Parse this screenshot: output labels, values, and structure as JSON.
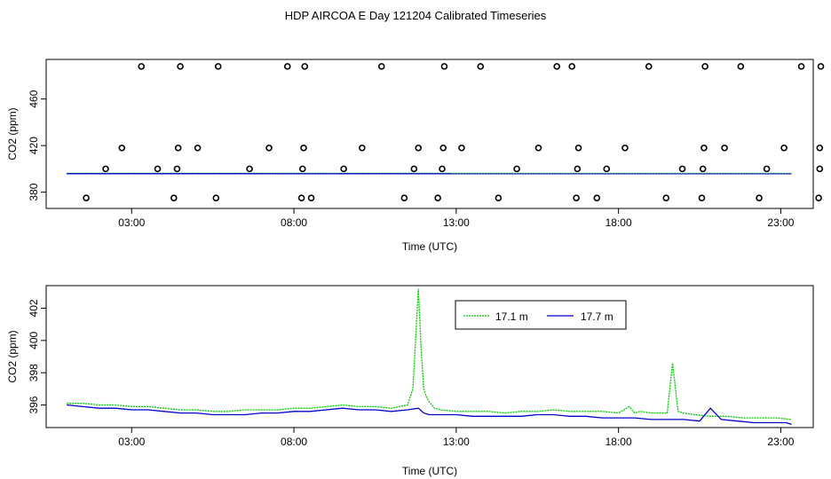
{
  "title": "HDP AIRCOA E  Day 121204  Calibrated Timeseries",
  "colors": {
    "series1": "#00cc00",
    "series2": "#0000cc",
    "markers": "#000000"
  },
  "chart_data": [
    {
      "type": "scatter",
      "xlabel": "Time (UTC)",
      "ylabel": "CO2 (ppm)",
      "xlim": [
        22,
        1440
      ],
      "ylim": [
        366,
        494
      ],
      "x_ticks": [
        180,
        480,
        780,
        1080,
        1380
      ],
      "x_tick_labels": [
        "03:00",
        "08:00",
        "13:00",
        "18:00",
        "23:00"
      ],
      "y_ticks": [
        380,
        420,
        460
      ],
      "y_tick_labels": [
        "380",
        "420",
        "460"
      ],
      "grid": false,
      "legend": "none",
      "series": [
        {
          "marker": "open-circle",
          "points": [
            [
              96,
              375
            ],
            [
              132,
              400
            ],
            [
              162,
              418
            ],
            [
              198,
              488
            ],
            [
              228,
              400
            ],
            [
              258,
              375
            ],
            [
              264,
              400
            ],
            [
              266,
              418
            ],
            [
              270,
              488
            ],
            [
              302,
              418
            ],
            [
              336,
              375
            ],
            [
              340,
              488
            ],
            [
              398,
              400
            ],
            [
              434,
              418
            ],
            [
              468,
              488
            ],
            [
              494,
              375
            ],
            [
              496,
              400
            ],
            [
              498,
              418
            ],
            [
              500,
              488
            ],
            [
              512,
              375
            ],
            [
              572,
              400
            ],
            [
              606,
              418
            ],
            [
              642,
              488
            ],
            [
              684,
              375
            ],
            [
              702,
              400
            ],
            [
              710,
              418
            ],
            [
              746,
              375
            ],
            [
              754,
              400
            ],
            [
              756,
              418
            ],
            [
              758,
              488
            ],
            [
              790,
              418
            ],
            [
              825,
              488
            ],
            [
              858,
              375
            ],
            [
              892,
              400
            ],
            [
              932,
              418
            ],
            [
              966,
              488
            ],
            [
              994,
              488
            ],
            [
              1002,
              375
            ],
            [
              1004,
              400
            ],
            [
              1006,
              418
            ],
            [
              1040,
              375
            ],
            [
              1058,
              400
            ],
            [
              1092,
              418
            ],
            [
              1136,
              488
            ],
            [
              1168,
              375
            ],
            [
              1198,
              400
            ],
            [
              1234,
              375
            ],
            [
              1236,
              400
            ],
            [
              1238,
              418
            ],
            [
              1240,
              488
            ],
            [
              1276,
              418
            ],
            [
              1306,
              488
            ],
            [
              1340,
              375
            ],
            [
              1354,
              400
            ],
            [
              1386,
              418
            ],
            [
              1418,
              488
            ],
            [
              1450,
              375
            ],
            [
              1452,
              400
            ],
            [
              1452,
              418
            ],
            [
              1454,
              488
            ]
          ]
        },
        {
          "name": "17.1 m",
          "x": [
            60,
            1400
          ],
          "y": [
            396.2,
            396.1
          ]
        },
        {
          "name": "17.7 m",
          "x": [
            60,
            1400
          ],
          "y": [
            395.9,
            395.8
          ]
        }
      ]
    },
    {
      "type": "line",
      "xlabel": "Time (UTC)",
      "ylabel": "CO2 (ppm)",
      "xlim": [
        22,
        1440
      ],
      "ylim": [
        394.6,
        403.4
      ],
      "x_ticks": [
        180,
        480,
        780,
        1080,
        1380
      ],
      "x_tick_labels": [
        "03:00",
        "08:00",
        "13:00",
        "18:00",
        "23:00"
      ],
      "y_ticks": [
        396,
        398,
        400,
        402
      ],
      "y_tick_labels": [
        "396",
        "398",
        "400",
        "402"
      ],
      "grid": false,
      "legend": "top-center",
      "series": [
        {
          "name": "17.1 m",
          "x": [
            60,
            90,
            120,
            150,
            180,
            210,
            240,
            270,
            300,
            330,
            360,
            390,
            420,
            450,
            480,
            510,
            540,
            570,
            600,
            630,
            660,
            690,
            700,
            710,
            715,
            720,
            725,
            730,
            735,
            740,
            750,
            780,
            810,
            840,
            870,
            900,
            930,
            960,
            990,
            1020,
            1050,
            1080,
            1100,
            1110,
            1120,
            1140,
            1170,
            1180,
            1190,
            1200,
            1220,
            1250,
            1280,
            1310,
            1340,
            1370,
            1400
          ],
          "y": [
            396.1,
            396.1,
            396.0,
            396.0,
            395.9,
            395.9,
            395.8,
            395.7,
            395.7,
            395.6,
            395.6,
            395.7,
            395.7,
            395.7,
            395.8,
            395.8,
            395.9,
            396.0,
            395.9,
            395.9,
            395.8,
            396.0,
            397.0,
            403.2,
            399.5,
            397.0,
            396.5,
            396.2,
            396.0,
            395.8,
            395.7,
            395.6,
            395.6,
            395.6,
            395.5,
            395.6,
            395.6,
            395.7,
            395.6,
            395.6,
            395.6,
            395.5,
            395.9,
            395.5,
            395.6,
            395.5,
            395.5,
            398.6,
            395.6,
            395.5,
            395.4,
            395.3,
            395.3,
            395.2,
            395.2,
            395.2,
            395.1
          ],
          "color": "#00cc00"
        },
        {
          "name": "17.7 m",
          "x": [
            60,
            90,
            120,
            150,
            180,
            210,
            240,
            270,
            300,
            330,
            360,
            390,
            420,
            450,
            480,
            510,
            540,
            570,
            600,
            630,
            660,
            690,
            710,
            720,
            730,
            750,
            780,
            810,
            840,
            870,
            900,
            930,
            960,
            990,
            1020,
            1050,
            1080,
            1110,
            1140,
            1170,
            1200,
            1230,
            1250,
            1270,
            1300,
            1330,
            1360,
            1390,
            1400
          ],
          "y": [
            396.0,
            395.9,
            395.8,
            395.8,
            395.7,
            395.7,
            395.6,
            395.5,
            395.5,
            395.4,
            395.4,
            395.4,
            395.5,
            395.5,
            395.6,
            395.6,
            395.7,
            395.8,
            395.7,
            395.7,
            395.6,
            395.7,
            395.8,
            395.5,
            395.4,
            395.4,
            395.4,
            395.3,
            395.3,
            395.3,
            395.3,
            395.4,
            395.4,
            395.3,
            395.3,
            395.2,
            395.2,
            395.2,
            395.1,
            395.1,
            395.1,
            395.0,
            395.8,
            395.1,
            395.0,
            394.9,
            394.9,
            394.9,
            394.8
          ],
          "color": "#0000cc"
        }
      ]
    }
  ]
}
